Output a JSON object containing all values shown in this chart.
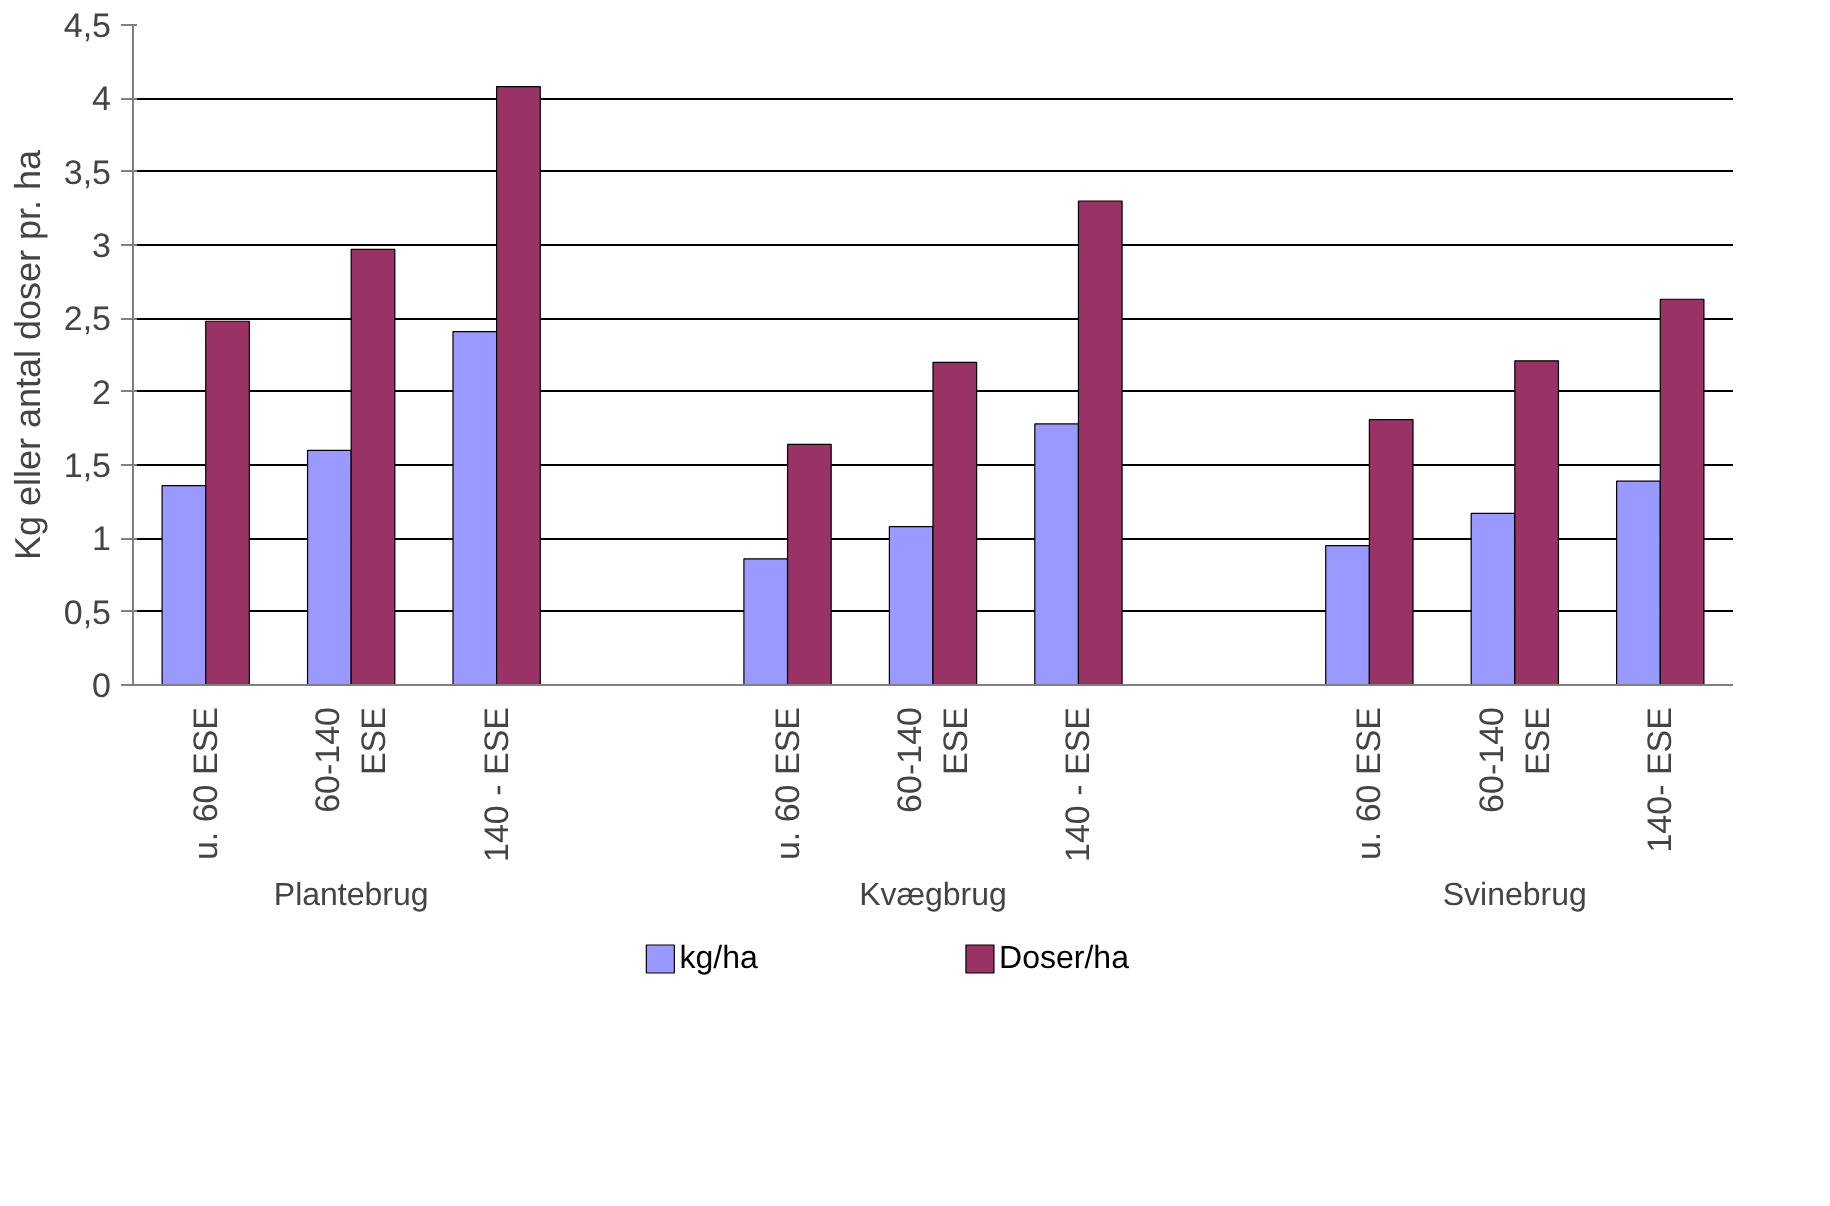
{
  "chart_data": {
    "type": "bar",
    "ylabel": "Kg eller antal doser pr. ha",
    "categories": [
      "u. 60 ESE",
      "60-140\nESE",
      "140 - ESE",
      null,
      "u. 60 ESE",
      "60-140\nESE",
      "140 - ESE",
      null,
      "u. 60 ESE",
      "60-140\nESE",
      "140- ESE"
    ],
    "series": [
      {
        "name": "kg/ha",
        "color": "#9999ff",
        "values": [
          1.36,
          1.6,
          2.41,
          null,
          0.86,
          1.08,
          1.78,
          null,
          0.95,
          1.17,
          1.39
        ]
      },
      {
        "name": "Doser/ha",
        "color": "#993366",
        "values": [
          2.48,
          2.97,
          4.08,
          null,
          1.64,
          2.2,
          3.3,
          null,
          1.81,
          2.21,
          2.63
        ]
      }
    ],
    "annotations": [
      "Plantebrug",
      "Kvægbrug",
      "Svinebrug"
    ],
    "ylim": [
      0,
      4.5
    ],
    "yticks": [
      0,
      {
        "value": 0.5,
        "label": "0,5"
      },
      1,
      {
        "value": 1.5,
        "label": "1,5"
      },
      2,
      {
        "value": 2.5,
        "label": "2,5"
      },
      3,
      {
        "value": 3.5,
        "label": "3,5"
      },
      4,
      {
        "value": 4.5,
        "label": "4,5"
      }
    ],
    "grid": "y",
    "legend": "bottom"
  }
}
